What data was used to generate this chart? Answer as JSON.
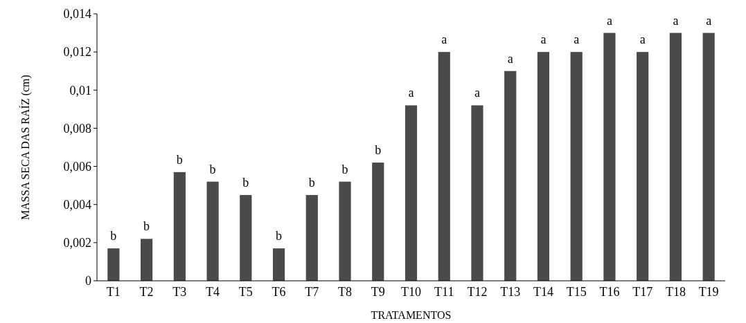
{
  "chart_data": {
    "type": "bar",
    "xlabel": "TRATAMENTOS",
    "ylabel": "MASSA SECA DAS RAÍZ (cm)",
    "categories": [
      "T1",
      "T2",
      "T3",
      "T4",
      "T5",
      "T6",
      "T7",
      "T8",
      "T9",
      "T10",
      "T11",
      "T12",
      "T13",
      "T14",
      "T15",
      "T16",
      "T17",
      "T18",
      "T19"
    ],
    "values": [
      0.0017,
      0.0022,
      0.0057,
      0.0052,
      0.0045,
      0.0017,
      0.0045,
      0.0052,
      0.0062,
      0.0092,
      0.012,
      0.0092,
      0.011,
      0.012,
      0.012,
      0.013,
      0.012,
      0.013,
      0.013
    ],
    "color": "#4a4a4a",
    "ylim": [
      0,
      0.014
    ],
    "yticks": [
      0,
      {
        "value": 0.002,
        "label": "0,002"
      },
      {
        "value": 0.004,
        "label": "0,004"
      },
      {
        "value": 0.006,
        "label": "0,006"
      },
      {
        "value": 0.008,
        "label": "0,008"
      },
      {
        "value": 0.01,
        "label": "0,01"
      },
      {
        "value": 0.012,
        "label": "0,012"
      },
      {
        "value": 0.014,
        "label": "0,014"
      }
    ],
    "grid": false,
    "annotations": [
      {
        "text": "b",
        "x": "T1",
        "y": 0.0017
      },
      {
        "text": "b",
        "x": "T2",
        "y": 0.0022
      },
      {
        "text": "b",
        "x": "T3",
        "y": 0.0057
      },
      {
        "text": "b",
        "x": "T4",
        "y": 0.0052
      },
      {
        "text": "b",
        "x": "T5",
        "y": 0.0045
      },
      {
        "text": "b",
        "x": "T6",
        "y": 0.0017
      },
      {
        "text": "b",
        "x": "T7",
        "y": 0.0045
      },
      {
        "text": "b",
        "x": "T8",
        "y": 0.0052
      },
      {
        "text": "b",
        "x": "T9",
        "y": 0.0062
      },
      {
        "text": "a",
        "x": "T10",
        "y": 0.0092
      },
      {
        "text": "a",
        "x": "T11",
        "y": 0.012
      },
      {
        "text": "a",
        "x": "T12",
        "y": 0.0092
      },
      {
        "text": "a",
        "x": "T13",
        "y": 0.011
      },
      {
        "text": "a",
        "x": "T14",
        "y": 0.012
      },
      {
        "text": "a",
        "x": "T15",
        "y": 0.012
      },
      {
        "text": "a",
        "x": "T16",
        "y": 0.013
      },
      {
        "text": "a",
        "x": "T17",
        "y": 0.012
      },
      {
        "text": "a",
        "x": "T18",
        "y": 0.013
      },
      {
        "text": "a",
        "x": "T19",
        "y": 0.013
      }
    ]
  }
}
